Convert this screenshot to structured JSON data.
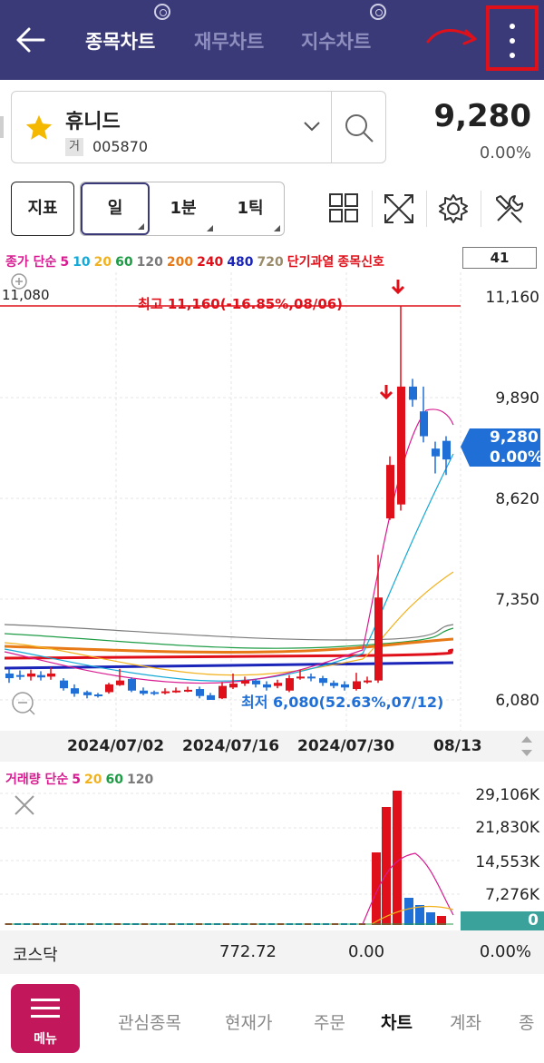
{
  "tabs": [
    "종목차트",
    "재무차트",
    "지수차트"
  ],
  "stock": {
    "name": "휴니드",
    "market_tag": "거",
    "code": "005870",
    "price": "9,280",
    "change_pct": "0.00%"
  },
  "toolbar": {
    "indicator": "지표",
    "periods": [
      "일",
      "1분",
      "1틱"
    ]
  },
  "ma_legend": [
    {
      "text": "종가 단순",
      "color": "#d81b91"
    },
    {
      "text": "5",
      "color": "#d81b91"
    },
    {
      "text": "10",
      "color": "#16a9d6"
    },
    {
      "text": "20",
      "color": "#f2b21e"
    },
    {
      "text": "60",
      "color": "#1e9c45"
    },
    {
      "text": "120",
      "color": "#7a7a7a"
    },
    {
      "text": "200",
      "color": "#e77a16"
    },
    {
      "text": "240",
      "color": "#e0101a"
    },
    {
      "text": "480",
      "color": "#1a24b8"
    },
    {
      "text": "720",
      "color": "#9a8c6a"
    },
    {
      "text": "단기과열",
      "color": "#e0101a"
    },
    {
      "text": "종목신호",
      "color": "#e0101a"
    }
  ],
  "chart_count": "41",
  "chart": {
    "left_label": "11,080",
    "high_label": "최고 11,160(-16.85%,08/06)",
    "low_label": "최저 6,080(52.63%,07/12)",
    "y_ticks": [
      "11,160",
      "9,890",
      "8,620",
      "7,350",
      "6,080"
    ],
    "current_price": "9,280",
    "current_pct": "0.00%",
    "dates": [
      "2024/07/02",
      "2024/07/16",
      "2024/07/30",
      "08/13"
    ]
  },
  "volume": {
    "legend": [
      {
        "text": "거래량 단순",
        "color": "#d81b91"
      },
      {
        "text": "5",
        "color": "#d81b91"
      },
      {
        "text": "20",
        "color": "#f2b21e"
      },
      {
        "text": "60",
        "color": "#1e9c45"
      },
      {
        "text": "120",
        "color": "#7a7a7a"
      }
    ],
    "y_ticks": [
      "29,106K",
      "21,830K",
      "14,553K",
      "7,276K"
    ],
    "current": "0"
  },
  "index_bar": {
    "name": "코스닥",
    "value": "772.72",
    "change": "0.00",
    "pct": "0.00%"
  },
  "nav": {
    "menu_label": "메뉴",
    "items": [
      "관심종목",
      "현재가",
      "주문",
      "차트",
      "계좌",
      "종"
    ]
  },
  "colors": {
    "header": "#3b3a78",
    "up": "#e0101a",
    "down": "#1f6fd6",
    "menu": "#c2185b",
    "highlight": "#e0101a"
  }
}
